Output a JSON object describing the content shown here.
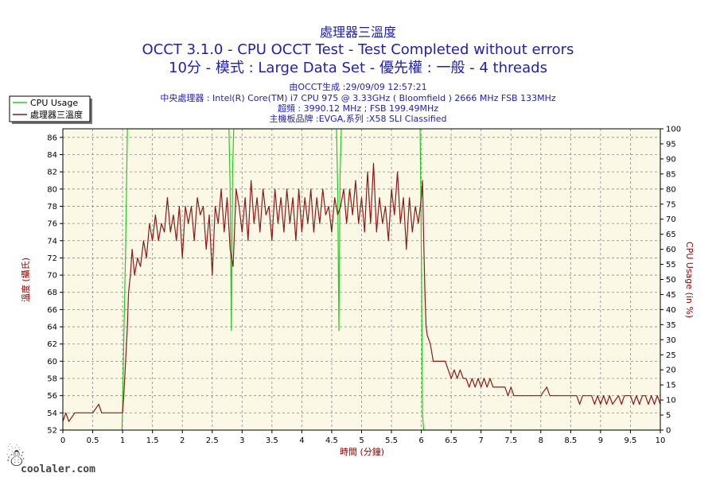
{
  "chart_data": {
    "type": "line",
    "title": "處理器三溫度",
    "subtitle_1": "OCCT 3.1.0 - CPU OCCT Test - Test Completed without errors",
    "subtitle_2": "10分 - 模式 : Large Data Set - 優先權 : 一般 - 4 threads",
    "info_lines": [
      "由OCCT生成 :29/09/09 12:57:21",
      "中央處理器 : Intel(R) Core(TM) i7 CPU 975 @ 3.33GHz ( Bloomfield ) 2666 MHz FSB 133MHz",
      "超頻 : 3990.12 MHz ; FSB 199.49MHz",
      "主機板品牌 :EVGA,系列 :X58 SLI Classified"
    ],
    "xlabel": "時間 (分鐘)",
    "ylabel_left": "溫度 (攝氏)",
    "ylabel_right": "CPU Usage (in %)",
    "xlim": [
      0,
      10
    ],
    "ylim_left": [
      52,
      87
    ],
    "ylim_right": [
      0,
      100
    ],
    "x_ticks": [
      "0",
      "0.5",
      "1",
      "1.5",
      "2",
      "2.5",
      "3",
      "3.5",
      "4",
      "4.5",
      "5",
      "5.5",
      "6",
      "6.5",
      "7",
      "7.5",
      "8",
      "8.5",
      "9",
      "9.5",
      "10"
    ],
    "y_left_ticks": [
      "52",
      "54",
      "56",
      "58",
      "60",
      "62",
      "64",
      "66",
      "68",
      "70",
      "72",
      "74",
      "76",
      "78",
      "80",
      "82",
      "84",
      "86"
    ],
    "y_right_ticks": [
      "0",
      "5",
      "10",
      "15",
      "20",
      "25",
      "30",
      "35",
      "40",
      "45",
      "50",
      "55",
      "60",
      "65",
      "70",
      "75",
      "80",
      "85",
      "90",
      "95",
      "100"
    ],
    "grid": true,
    "legend_position": "top-left",
    "series": [
      {
        "name": "CPU Usage",
        "axis": "right",
        "color": "#22cc22",
        "points": [
          [
            0,
            0
          ],
          [
            0.99,
            0
          ],
          [
            1.0,
            8
          ],
          [
            1.02,
            30
          ],
          [
            1.05,
            60
          ],
          [
            1.08,
            100
          ],
          [
            2.78,
            100
          ],
          [
            2.8,
            80
          ],
          [
            2.82,
            33
          ],
          [
            2.84,
            85
          ],
          [
            2.86,
            100
          ],
          [
            4.58,
            100
          ],
          [
            4.6,
            80
          ],
          [
            4.62,
            33
          ],
          [
            4.64,
            85
          ],
          [
            4.66,
            100
          ],
          [
            5.98,
            100
          ],
          [
            6.0,
            60
          ],
          [
            6.02,
            5
          ],
          [
            6.04,
            0
          ],
          [
            10,
            0
          ]
        ]
      },
      {
        "name": "處理器三溫度",
        "axis": "left",
        "color": "#8b1a1a",
        "points": [
          [
            0,
            53
          ],
          [
            0.05,
            54
          ],
          [
            0.1,
            53
          ],
          [
            0.2,
            54
          ],
          [
            0.35,
            54
          ],
          [
            0.5,
            54
          ],
          [
            0.6,
            55
          ],
          [
            0.65,
            54
          ],
          [
            1.0,
            54
          ],
          [
            1.02,
            56
          ],
          [
            1.05,
            60
          ],
          [
            1.08,
            64
          ],
          [
            1.1,
            68
          ],
          [
            1.13,
            70
          ],
          [
            1.16,
            73
          ],
          [
            1.2,
            70
          ],
          [
            1.25,
            72
          ],
          [
            1.3,
            71
          ],
          [
            1.35,
            74
          ],
          [
            1.4,
            72
          ],
          [
            1.45,
            76
          ],
          [
            1.5,
            74
          ],
          [
            1.55,
            77
          ],
          [
            1.6,
            74
          ],
          [
            1.65,
            76
          ],
          [
            1.7,
            75
          ],
          [
            1.75,
            79
          ],
          [
            1.8,
            75
          ],
          [
            1.85,
            77
          ],
          [
            1.9,
            74
          ],
          [
            1.95,
            78
          ],
          [
            2.0,
            72
          ],
          [
            2.05,
            78
          ],
          [
            2.1,
            76
          ],
          [
            2.15,
            78
          ],
          [
            2.2,
            74
          ],
          [
            2.25,
            79
          ],
          [
            2.3,
            77
          ],
          [
            2.35,
            78
          ],
          [
            2.4,
            73
          ],
          [
            2.45,
            77
          ],
          [
            2.5,
            70
          ],
          [
            2.55,
            78
          ],
          [
            2.6,
            76
          ],
          [
            2.65,
            80
          ],
          [
            2.7,
            75
          ],
          [
            2.75,
            79
          ],
          [
            2.8,
            73
          ],
          [
            2.85,
            71
          ],
          [
            2.9,
            80
          ],
          [
            2.95,
            78
          ],
          [
            3.0,
            75
          ],
          [
            3.05,
            79
          ],
          [
            3.1,
            74
          ],
          [
            3.15,
            81
          ],
          [
            3.2,
            76
          ],
          [
            3.25,
            79
          ],
          [
            3.3,
            75
          ],
          [
            3.35,
            80
          ],
          [
            3.4,
            77
          ],
          [
            3.45,
            78
          ],
          [
            3.5,
            74
          ],
          [
            3.55,
            80
          ],
          [
            3.6,
            76
          ],
          [
            3.65,
            79
          ],
          [
            3.7,
            75
          ],
          [
            3.75,
            80
          ],
          [
            3.8,
            76
          ],
          [
            3.85,
            79
          ],
          [
            3.9,
            74
          ],
          [
            3.95,
            80
          ],
          [
            4.0,
            75
          ],
          [
            4.05,
            79
          ],
          [
            4.1,
            76
          ],
          [
            4.15,
            80
          ],
          [
            4.2,
            75
          ],
          [
            4.25,
            79
          ],
          [
            4.3,
            76
          ],
          [
            4.35,
            80
          ],
          [
            4.4,
            77
          ],
          [
            4.45,
            78
          ],
          [
            4.5,
            75
          ],
          [
            4.55,
            79
          ],
          [
            4.6,
            77
          ],
          [
            4.65,
            78
          ],
          [
            4.7,
            80
          ],
          [
            4.75,
            76
          ],
          [
            4.8,
            80
          ],
          [
            4.85,
            77
          ],
          [
            4.9,
            81
          ],
          [
            4.95,
            76
          ],
          [
            5.0,
            79
          ],
          [
            5.05,
            75
          ],
          [
            5.1,
            82
          ],
          [
            5.15,
            76
          ],
          [
            5.2,
            83
          ],
          [
            5.25,
            75
          ],
          [
            5.3,
            79
          ],
          [
            5.35,
            76
          ],
          [
            5.4,
            78
          ],
          [
            5.45,
            74
          ],
          [
            5.5,
            80
          ],
          [
            5.55,
            77
          ],
          [
            5.6,
            82
          ],
          [
            5.65,
            76
          ],
          [
            5.7,
            79
          ],
          [
            5.75,
            73
          ],
          [
            5.8,
            79
          ],
          [
            5.85,
            75
          ],
          [
            5.9,
            78
          ],
          [
            5.95,
            76
          ],
          [
            6.0,
            79
          ],
          [
            6.02,
            81
          ],
          [
            6.04,
            74
          ],
          [
            6.06,
            68
          ],
          [
            6.08,
            64
          ],
          [
            6.1,
            63
          ],
          [
            6.15,
            62
          ],
          [
            6.2,
            60
          ],
          [
            6.3,
            60
          ],
          [
            6.4,
            60
          ],
          [
            6.45,
            59
          ],
          [
            6.5,
            58
          ],
          [
            6.55,
            59
          ],
          [
            6.6,
            58
          ],
          [
            6.65,
            59
          ],
          [
            6.7,
            58
          ],
          [
            6.75,
            58
          ],
          [
            6.8,
            57
          ],
          [
            6.85,
            58
          ],
          [
            6.9,
            57
          ],
          [
            6.95,
            58
          ],
          [
            7.0,
            57
          ],
          [
            7.05,
            58
          ],
          [
            7.1,
            57
          ],
          [
            7.15,
            58
          ],
          [
            7.2,
            57
          ],
          [
            7.3,
            57
          ],
          [
            7.4,
            57
          ],
          [
            7.45,
            56
          ],
          [
            7.5,
            57
          ],
          [
            7.55,
            56
          ],
          [
            7.8,
            56
          ],
          [
            8.0,
            56
          ],
          [
            8.1,
            57
          ],
          [
            8.15,
            56
          ],
          [
            8.5,
            56
          ],
          [
            8.6,
            56
          ],
          [
            8.65,
            55
          ],
          [
            8.7,
            56
          ],
          [
            8.75,
            56
          ],
          [
            8.85,
            56
          ],
          [
            8.9,
            55
          ],
          [
            8.95,
            56
          ],
          [
            9.0,
            55
          ],
          [
            9.05,
            56
          ],
          [
            9.1,
            55
          ],
          [
            9.15,
            56
          ],
          [
            9.2,
            55
          ],
          [
            9.3,
            56
          ],
          [
            9.35,
            55
          ],
          [
            9.4,
            56
          ],
          [
            9.5,
            56
          ],
          [
            9.55,
            55
          ],
          [
            9.6,
            56
          ],
          [
            9.65,
            55
          ],
          [
            9.7,
            56
          ],
          [
            9.75,
            56
          ],
          [
            9.8,
            55
          ],
          [
            9.85,
            56
          ],
          [
            9.9,
            55
          ],
          [
            9.95,
            56
          ],
          [
            10,
            55
          ]
        ]
      }
    ]
  },
  "watermark": "coolaler.com"
}
